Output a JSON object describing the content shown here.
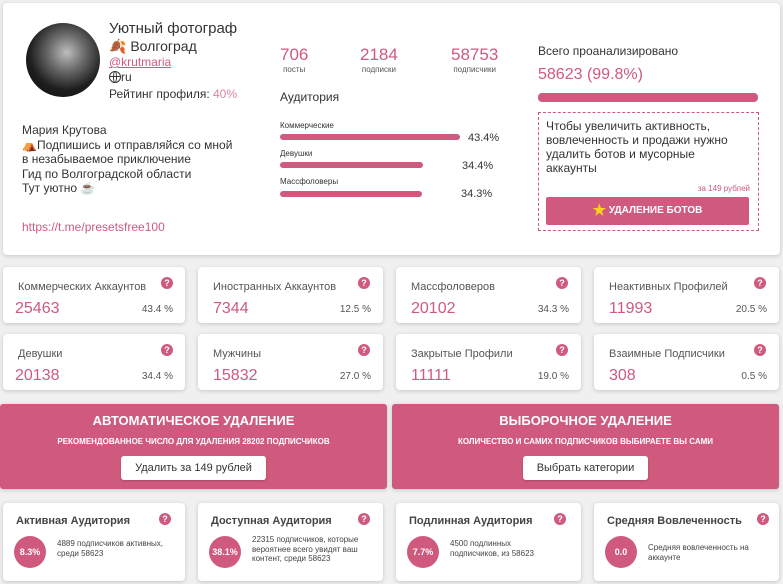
{
  "profile": {
    "name": "Уютный фотограф",
    "city_emoji": "🍂",
    "city": "Волгоград",
    "handle": "@krutmaria",
    "lang_icon": "globe-icon",
    "lang": "ru",
    "rating_label": "Рейтинг профиля:",
    "rating_value": "40%",
    "bio_lines": [
      "Мария Крутова",
      "⛺Подпишись и отправляйся со мной",
      "в незабываемое приключение",
      "Гид по Волгоградской области",
      "Тут уютно ☕"
    ],
    "link": "https://t.me/presetsfree100"
  },
  "stats": [
    {
      "value": "706",
      "label": "посты"
    },
    {
      "value": "2184",
      "label": "подписки"
    },
    {
      "value": "58753",
      "label": "подписчики"
    }
  ],
  "audience": {
    "title": "Аудитория",
    "rows": [
      {
        "label": "Коммерческие",
        "percent": "43.4%",
        "fill": 0.434
      },
      {
        "label": "Девушки",
        "percent": "34.4%",
        "fill": 0.344
      },
      {
        "label": "Массфоловеры",
        "percent": "34.3%",
        "fill": 0.343
      }
    ]
  },
  "analyzed": {
    "label": "Всего проанализировано",
    "value": "58623 (99.8%)",
    "fill": 0.998
  },
  "bots_box": {
    "text": "Чтобы увеличить активность, вовлеченность и продажи нужно удалить ботов и мусорные аккаунты",
    "price": "за 149 рублей",
    "button": "УДАЛЕНИЕ БОТОВ",
    "button_icon": "star-icon"
  },
  "metrics": [
    {
      "title": "Коммерческих Аккаунтов",
      "value": "25463",
      "percent": "43.4 %"
    },
    {
      "title": "Иностранных Аккаунтов",
      "value": "7344",
      "percent": "12.5 %"
    },
    {
      "title": "Массфоловеров",
      "value": "20102",
      "percent": "34.3 %"
    },
    {
      "title": "Неактивных Профилей",
      "value": "11993",
      "percent": "20.5 %"
    },
    {
      "title": "Девушки",
      "value": "20138",
      "percent": "34.4 %"
    },
    {
      "title": "Мужчины",
      "value": "15832",
      "percent": "27.0 %"
    },
    {
      "title": "Закрытые Профили",
      "value": "11111",
      "percent": "19.0 %"
    },
    {
      "title": "Взаимные Подписчики",
      "value": "308",
      "percent": "0.5 %"
    }
  ],
  "help_glyph": "?",
  "auto_delete": {
    "title": "АВТОМАТИЧЕСКОЕ УДАЛЕНИЕ",
    "subtitle": "РЕКОМЕНДОВАННОЕ ЧИСЛО ДЛЯ УДАЛЕНИЯ 28202 ПОДПИСЧИКОВ",
    "button": "Удалить за 149 рублей"
  },
  "selective_delete": {
    "title": "ВЫБОРОЧНОЕ УДАЛЕНИЕ",
    "subtitle": "КОЛИЧЕСТВО И САМИХ ПОДПИСЧИКОВ ВЫБИРАЕТЕ ВЫ САМИ",
    "button": "Выбрать категории"
  },
  "audiences": [
    {
      "title": "Активная Аудитория",
      "value": "8.3%",
      "desc": "4889 подписчиков активных, среди 58623"
    },
    {
      "title": "Доступная Аудитория",
      "value": "38.1%",
      "desc": "22315 подписчиков, которые вероятнее всего увидят ваш контент, среди 58623"
    },
    {
      "title": "Подлинная Аудитория",
      "value": "7.7%",
      "desc": "4500 подлинных подписчиков, из 58623"
    },
    {
      "title": "Средняя Вовлеченность",
      "value": "0.0",
      "desc": "Средняя вовлеченность на аккаунте"
    }
  ],
  "colors": {
    "accent": "#cf5a7e",
    "background": "#f0f0f0"
  }
}
